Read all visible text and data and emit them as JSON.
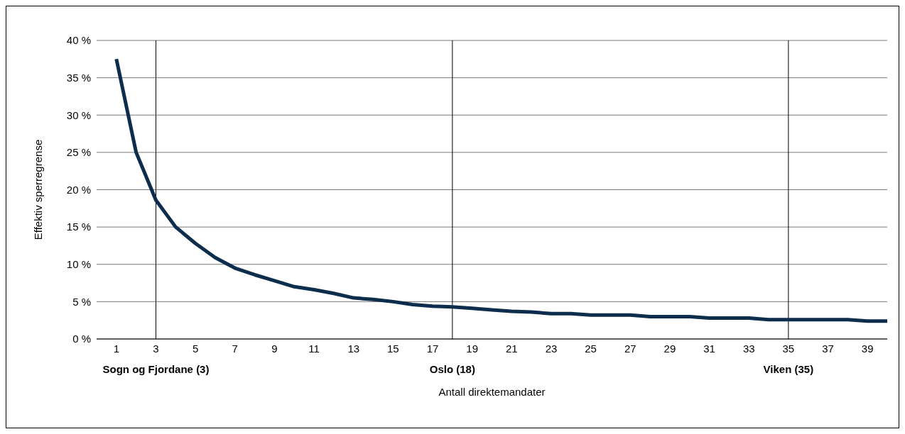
{
  "chart_data": {
    "type": "line",
    "xlabel": "Antall direktemandater",
    "ylabel": "Effektiv sperregrense",
    "x": [
      1,
      2,
      3,
      4,
      5,
      6,
      7,
      8,
      9,
      10,
      11,
      12,
      13,
      14,
      15,
      16,
      17,
      18,
      19,
      20,
      21,
      22,
      23,
      24,
      25,
      26,
      27,
      28,
      29,
      30,
      31,
      32,
      33,
      34,
      35,
      36,
      37,
      38,
      39,
      40
    ],
    "series": [
      {
        "color": "#0d2d4c",
        "values": [
          37.5,
          25,
          18.6,
          15,
          12.8,
          10.9,
          9.5,
          8.6,
          7.8,
          7.0,
          6.6,
          6.1,
          5.5,
          5.3,
          5.0,
          4.6,
          4.4,
          4.3,
          4.1,
          3.9,
          3.7,
          3.6,
          3.4,
          3.4,
          3.2,
          3.2,
          3.2,
          3.0,
          3.0,
          3.0,
          2.8,
          2.8,
          2.8,
          2.6,
          2.6,
          2.6,
          2.6,
          2.6,
          2.4,
          2.4
        ]
      }
    ],
    "xlim": [
      0,
      40
    ],
    "xticks": [
      1,
      3,
      5,
      7,
      9,
      11,
      13,
      15,
      17,
      19,
      21,
      23,
      25,
      27,
      29,
      31,
      33,
      35,
      37,
      39
    ],
    "ylim": [
      0,
      40
    ],
    "yticks": [
      {
        "value": 0,
        "label": "0 %"
      },
      {
        "value": 5,
        "label": "5 %"
      },
      {
        "value": 10,
        "label": "10 %"
      },
      {
        "value": 15,
        "label": "15 %"
      },
      {
        "value": 20,
        "label": "20 %"
      },
      {
        "value": 25,
        "label": "25 %"
      },
      {
        "value": 30,
        "label": "30 %"
      },
      {
        "value": 35,
        "label": "35 %"
      },
      {
        "value": 40,
        "label": "40 %"
      }
    ],
    "ref_lines": [
      {
        "axis": "x",
        "value": 3,
        "label": "Sogn og Fjordane (3)",
        "color": "#000000"
      },
      {
        "axis": "x",
        "value": 18,
        "label": "Oslo (18)",
        "color": "#000000"
      },
      {
        "axis": "x",
        "value": 35,
        "label": "Viken (35)",
        "color": "#000000"
      }
    ],
    "grid": "y",
    "marker": "none",
    "line_style": "solid"
  }
}
